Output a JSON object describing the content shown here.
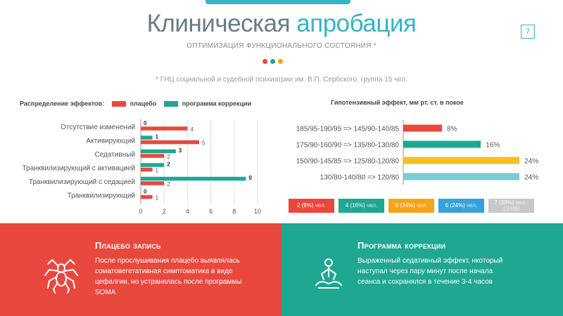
{
  "header": {
    "title_part1": "Клиническая",
    "title_part2": "апробация",
    "subtitle": "ОПТИМИЗАЦИЯ ФУНКЦИОНАЛЬНОГО СОСТОЯНИЯ *",
    "page_number": "7",
    "source_note": "* ГНЦ социальной и судебной психиатрии им. В.П. Сербского, группа 15 чел.",
    "dot_colors": [
      "#e8483e",
      "#1fa792",
      "#f4a51c"
    ]
  },
  "colors": {
    "placebo": "#e8483e",
    "correction": "#1fa792",
    "accent": "#36b3c4"
  },
  "chart_data": [
    {
      "type": "bar",
      "title": "Распределение эффектов:",
      "categories": [
        "Отсутствие изменений",
        "Активирующий",
        "Седативный",
        "Транквилизирующий с активацией",
        "Транквилизирующий с седацией",
        "Транквилизирующий"
      ],
      "series": [
        {
          "name": "плацебо",
          "color": "#e8483e",
          "values": [
            4,
            5,
            2,
            1,
            2,
            1
          ]
        },
        {
          "name": "программа коррекции",
          "color": "#1fa792",
          "values": [
            0,
            1,
            3,
            2,
            9,
            0
          ]
        }
      ],
      "xlim": [
        0,
        10
      ],
      "xticks": [
        0,
        2,
        4,
        6,
        8,
        10
      ],
      "orientation": "horizontal",
      "grid": true
    },
    {
      "type": "bar",
      "title": "Гипотензивный эффект, мм рт. ст. в покое",
      "categories": [
        "185/95-190/95 => 145/90-140/85",
        "175/90-160/90 => 135/80-130/80",
        "150/90-145/85 => 125/80-120/80",
        "130/80-140/80 => 120/80"
      ],
      "values": [
        8,
        16,
        24,
        24
      ],
      "value_labels": [
        "8%",
        "16%",
        "24%",
        "24%"
      ],
      "colors": [
        "#e8483e",
        "#1fa792",
        "#f4c21c",
        "#7ccbd6"
      ],
      "xlim": [
        0,
        25
      ],
      "orientation": "horizontal"
    }
  ],
  "summary_boxes": [
    {
      "main": "2 (8%)",
      "suffix": "чел.",
      "color": "#e8483e"
    },
    {
      "main": "4 (16%)",
      "suffix": "чел.",
      "color": "#1fa792"
    },
    {
      "main": "6 (24%)",
      "suffix": "чел.",
      "color": "#f4a51c"
    },
    {
      "main": "6 (24%)",
      "suffix": "чел.",
      "color": "#36a3d8"
    },
    {
      "main": "7 (28%)",
      "suffix": "чел.- 120/80",
      "color": "#c8c8c8"
    }
  ],
  "panels": {
    "left": {
      "title": "Плацебо запись",
      "text": "После прослушивания плацебо выявлялась соматовегетативная симптоматика в виде цефалгии, но устранялась после программы SOMA",
      "icon": "spider-icon"
    },
    "right": {
      "title": "Программа коррекции",
      "text": "Выраженный седативный эффект, нкоторый наступал через пару минут после начала сеанса и сохранялся в течение 3-4 часов",
      "icon": "meditation-icon"
    }
  }
}
